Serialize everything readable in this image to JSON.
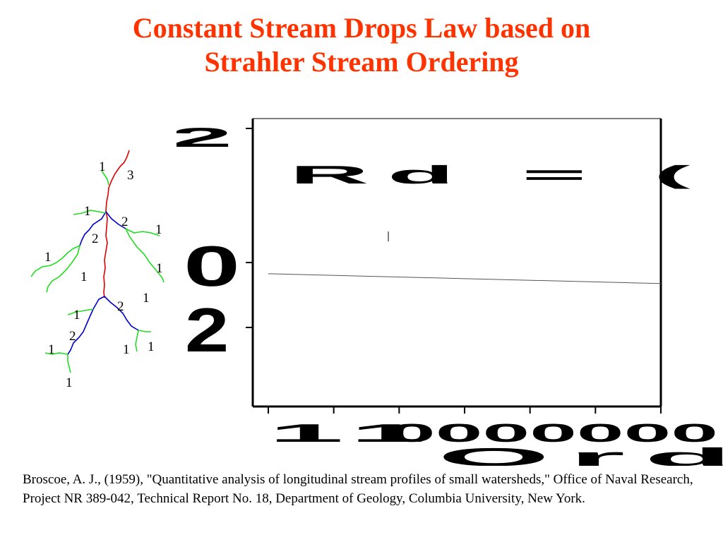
{
  "slide": {
    "title_line1": "Constant Stream Drops Law based on",
    "title_line2": "Strahler Stream Ordering",
    "reference": "Broscoe, A. J., (1959), \"Quantitative analysis of longitudinal stream profiles of small watersheds,\" Office of Naval Research, Project NR 389-042, Technical Report No. 18, Department of Geology, Columbia University, New York."
  },
  "stream_tree": {
    "colors": {
      "order1": "#22dd22",
      "order2": "#0000cc",
      "order3": "#dd0000"
    },
    "labels": [
      "1",
      "3",
      "1",
      "2",
      "1",
      "2",
      "1",
      "1",
      "1",
      "1",
      "2",
      "1",
      "2",
      "1",
      "1",
      "1",
      "1"
    ]
  },
  "chart_data": {
    "type": "line",
    "annotation": "Rd = (",
    "xlabel": "Ord",
    "x_tick_labels_garbled": "11",
    "y_tick_labels_garbled": [
      "2",
      "0",
      "2"
    ],
    "series": [
      {
        "x": [
          1,
          7
        ],
        "y": [
          0.95,
          0.88
        ]
      }
    ],
    "xlim": [
      1,
      7
    ],
    "ylim": [
      0,
      2
    ],
    "grid": false
  }
}
